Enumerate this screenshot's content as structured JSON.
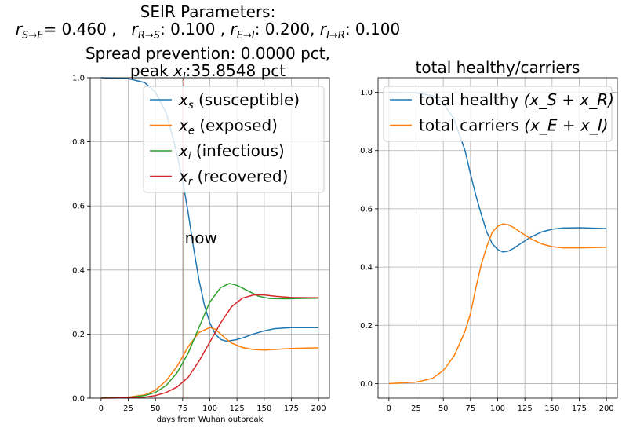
{
  "chart_data": [
    {
      "type": "line",
      "title_lines": [
        "SEIR Parameters:",
        "r_{S→E}= 0.460 ,   r_{R→S}: 0.100 , r_{E→I}: 0.200, r_{I→R}: 0.100",
        "Spread prevention: 0.0000 pct,",
        "peak x_I:35.8548 pct"
      ],
      "xlabel": "days from Wuhan outbreak",
      "ylabel": "",
      "xlim": [
        -10,
        210
      ],
      "ylim": [
        0,
        1.0
      ],
      "xticks": [
        "0",
        "25",
        "50",
        "75",
        "100",
        "125",
        "150",
        "175",
        "200"
      ],
      "yticks": [
        "0.0",
        "0.2",
        "0.4",
        "0.6",
        "0.8",
        "1.0"
      ],
      "grid": true,
      "legend_position": "top-right",
      "annotation": {
        "text": "now",
        "x": 77,
        "y": 0.5
      },
      "vline": {
        "x": 76,
        "color": "#8b0000"
      },
      "series": [
        {
          "name_main": "x",
          "name_sub": "s",
          "name_suffix": " (susceptible)",
          "color": "#1f77b4",
          "points": [
            [
              0,
              1.0
            ],
            [
              25,
              0.997
            ],
            [
              40,
              0.985
            ],
            [
              50,
              0.955
            ],
            [
              60,
              0.89
            ],
            [
              70,
              0.76
            ],
            [
              75,
              0.68
            ],
            [
              80,
              0.58
            ],
            [
              85,
              0.47
            ],
            [
              90,
              0.37
            ],
            [
              95,
              0.29
            ],
            [
              100,
              0.235
            ],
            [
              105,
              0.2
            ],
            [
              110,
              0.183
            ],
            [
              115,
              0.178
            ],
            [
              120,
              0.18
            ],
            [
              125,
              0.183
            ],
            [
              130,
              0.188
            ],
            [
              140,
              0.2
            ],
            [
              150,
              0.21
            ],
            [
              160,
              0.217
            ],
            [
              175,
              0.22
            ],
            [
              200,
              0.22
            ]
          ]
        },
        {
          "name_main": "x",
          "name_sub": "e",
          "name_suffix": " (exposed)",
          "color": "#ff7f0e",
          "points": [
            [
              0,
              0.001
            ],
            [
              25,
              0.003
            ],
            [
              40,
              0.01
            ],
            [
              50,
              0.025
            ],
            [
              60,
              0.055
            ],
            [
              70,
              0.1
            ],
            [
              80,
              0.16
            ],
            [
              90,
              0.205
            ],
            [
              100,
              0.22
            ],
            [
              105,
              0.215
            ],
            [
              110,
              0.2
            ],
            [
              115,
              0.185
            ],
            [
              120,
              0.172
            ],
            [
              130,
              0.158
            ],
            [
              140,
              0.152
            ],
            [
              150,
              0.15
            ],
            [
              160,
              0.152
            ],
            [
              175,
              0.155
            ],
            [
              200,
              0.157
            ]
          ]
        },
        {
          "name_main": "x",
          "name_sub": "i",
          "name_suffix": " (infectious)",
          "color": "#2ca02c",
          "points": [
            [
              0,
              0.001
            ],
            [
              25,
              0.002
            ],
            [
              40,
              0.008
            ],
            [
              50,
              0.018
            ],
            [
              60,
              0.04
            ],
            [
              70,
              0.08
            ],
            [
              80,
              0.14
            ],
            [
              90,
              0.22
            ],
            [
              100,
              0.3
            ],
            [
              110,
              0.345
            ],
            [
              118,
              0.358
            ],
            [
              125,
              0.352
            ],
            [
              135,
              0.335
            ],
            [
              145,
              0.318
            ],
            [
              155,
              0.311
            ],
            [
              170,
              0.31
            ],
            [
              200,
              0.312
            ]
          ]
        },
        {
          "name_main": "x",
          "name_sub": "r",
          "name_suffix": " (recovered)",
          "color": "#d62728",
          "points": [
            [
              0,
              0.0
            ],
            [
              25,
              0.001
            ],
            [
              40,
              0.003
            ],
            [
              50,
              0.008
            ],
            [
              60,
              0.018
            ],
            [
              70,
              0.035
            ],
            [
              80,
              0.065
            ],
            [
              90,
              0.115
            ],
            [
              100,
              0.175
            ],
            [
              110,
              0.235
            ],
            [
              120,
              0.285
            ],
            [
              130,
              0.312
            ],
            [
              140,
              0.322
            ],
            [
              150,
              0.322
            ],
            [
              160,
              0.318
            ],
            [
              175,
              0.314
            ],
            [
              200,
              0.313
            ]
          ]
        }
      ]
    },
    {
      "type": "line",
      "title": "total healthy/carriers",
      "xlabel": "",
      "ylabel": "",
      "xlim": [
        -10,
        210
      ],
      "ylim": [
        -0.05,
        1.05
      ],
      "xticks": [
        "0",
        "25",
        "50",
        "75",
        "100",
        "125",
        "150",
        "175",
        "200"
      ],
      "yticks": [
        "0.0",
        "0.2",
        "0.4",
        "0.6",
        "0.8",
        "1.0"
      ],
      "grid": true,
      "legend_position": "top-right",
      "series": [
        {
          "name_text": "total healthy ",
          "name_math": "(x_S + x_R)",
          "color": "#1f77b4",
          "points": [
            [
              0,
              1.0
            ],
            [
              25,
              0.998
            ],
            [
              40,
              0.988
            ],
            [
              50,
              0.963
            ],
            [
              60,
              0.908
            ],
            [
              70,
              0.8
            ],
            [
              75,
              0.72
            ],
            [
              80,
              0.645
            ],
            [
              85,
              0.58
            ],
            [
              90,
              0.52
            ],
            [
              95,
              0.48
            ],
            [
              100,
              0.46
            ],
            [
              105,
              0.452
            ],
            [
              110,
              0.455
            ],
            [
              115,
              0.465
            ],
            [
              120,
              0.478
            ],
            [
              130,
              0.502
            ],
            [
              140,
              0.52
            ],
            [
              150,
              0.53
            ],
            [
              160,
              0.534
            ],
            [
              175,
              0.535
            ],
            [
              200,
              0.532
            ]
          ]
        },
        {
          "name_text": "total carriers ",
          "name_math": "(x_E + x_I)",
          "color": "#ff7f0e",
          "points": [
            [
              0,
              0.0
            ],
            [
              25,
              0.005
            ],
            [
              40,
              0.018
            ],
            [
              50,
              0.045
            ],
            [
              60,
              0.095
            ],
            [
              70,
              0.18
            ],
            [
              75,
              0.24
            ],
            [
              80,
              0.33
            ],
            [
              85,
              0.41
            ],
            [
              90,
              0.47
            ],
            [
              95,
              0.52
            ],
            [
              100,
              0.54
            ],
            [
              105,
              0.548
            ],
            [
              110,
              0.545
            ],
            [
              115,
              0.535
            ],
            [
              120,
              0.522
            ],
            [
              130,
              0.498
            ],
            [
              140,
              0.48
            ],
            [
              150,
              0.47
            ],
            [
              160,
              0.466
            ],
            [
              175,
              0.466
            ],
            [
              200,
              0.468
            ]
          ]
        }
      ]
    }
  ]
}
